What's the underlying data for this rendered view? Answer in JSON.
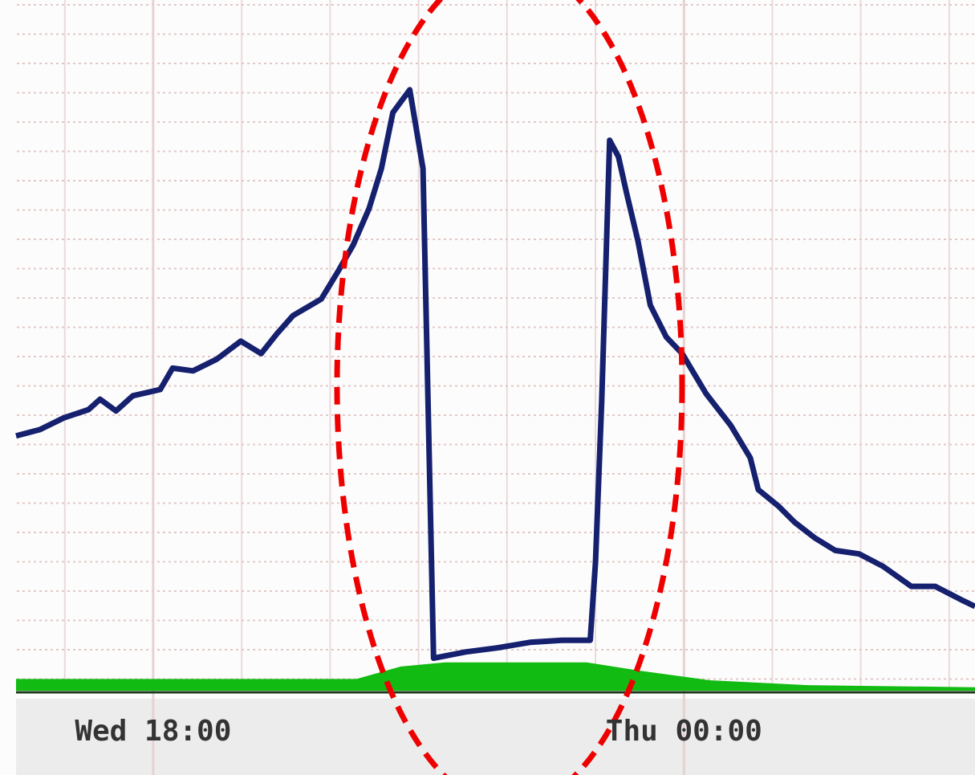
{
  "chart_data": {
    "type": "line",
    "xlim": [
      16.45,
      27.29
    ],
    "ylim": [
      0,
      100
    ],
    "xticks": [
      {
        "value": 18,
        "label": "Wed 18:00"
      },
      {
        "value": 24,
        "label": "Thu 00:00"
      }
    ],
    "grid": true,
    "series": [
      {
        "style": "area",
        "color": "#11bb11",
        "x": [
          16.45,
          20.3,
          20.8,
          21.3,
          22.9,
          23.5,
          24.3,
          25.4,
          27.29
        ],
        "values": [
          1.7,
          1.7,
          3.5,
          4.1,
          4.1,
          2.9,
          1.5,
          0.8,
          0.5
        ]
      },
      {
        "style": "line",
        "color": "#15206e",
        "x": [
          16.45,
          16.72,
          16.99,
          17.27,
          17.4,
          17.58,
          17.77,
          18.08,
          18.22,
          18.45,
          18.72,
          18.99,
          19.22,
          19.4,
          19.58,
          19.9,
          20.08,
          20.26,
          20.44,
          20.58,
          20.71,
          20.9,
          21.05,
          21.17,
          21.53,
          21.89,
          22.26,
          22.62,
          22.94,
          23.0,
          23.07,
          23.16,
          23.26,
          23.35,
          23.48,
          23.62,
          23.8,
          23.98,
          24.25,
          24.53,
          24.75,
          24.84,
          25.07,
          25.25,
          25.48,
          25.71,
          25.98,
          26.25,
          26.57,
          26.84,
          27.16,
          27.29
        ],
        "values": [
          36.9,
          37.8,
          39.5,
          40.7,
          42.2,
          40.5,
          42.7,
          43.6,
          46.7,
          46.3,
          48.0,
          50.6,
          48.8,
          51.7,
          54.3,
          56.7,
          60.5,
          64.5,
          69.8,
          75.6,
          83.7,
          87.0,
          75.6,
          4.7,
          5.6,
          6.2,
          7.0,
          7.3,
          7.3,
          18.6,
          41.9,
          79.7,
          77.3,
          72.1,
          65.1,
          55.8,
          51.2,
          48.8,
          43.0,
          38.4,
          33.7,
          29.1,
          26.7,
          24.4,
          22.1,
          20.3,
          19.8,
          18.0,
          15.1,
          15.1,
          13.0,
          12.2
        ]
      }
    ]
  }
}
